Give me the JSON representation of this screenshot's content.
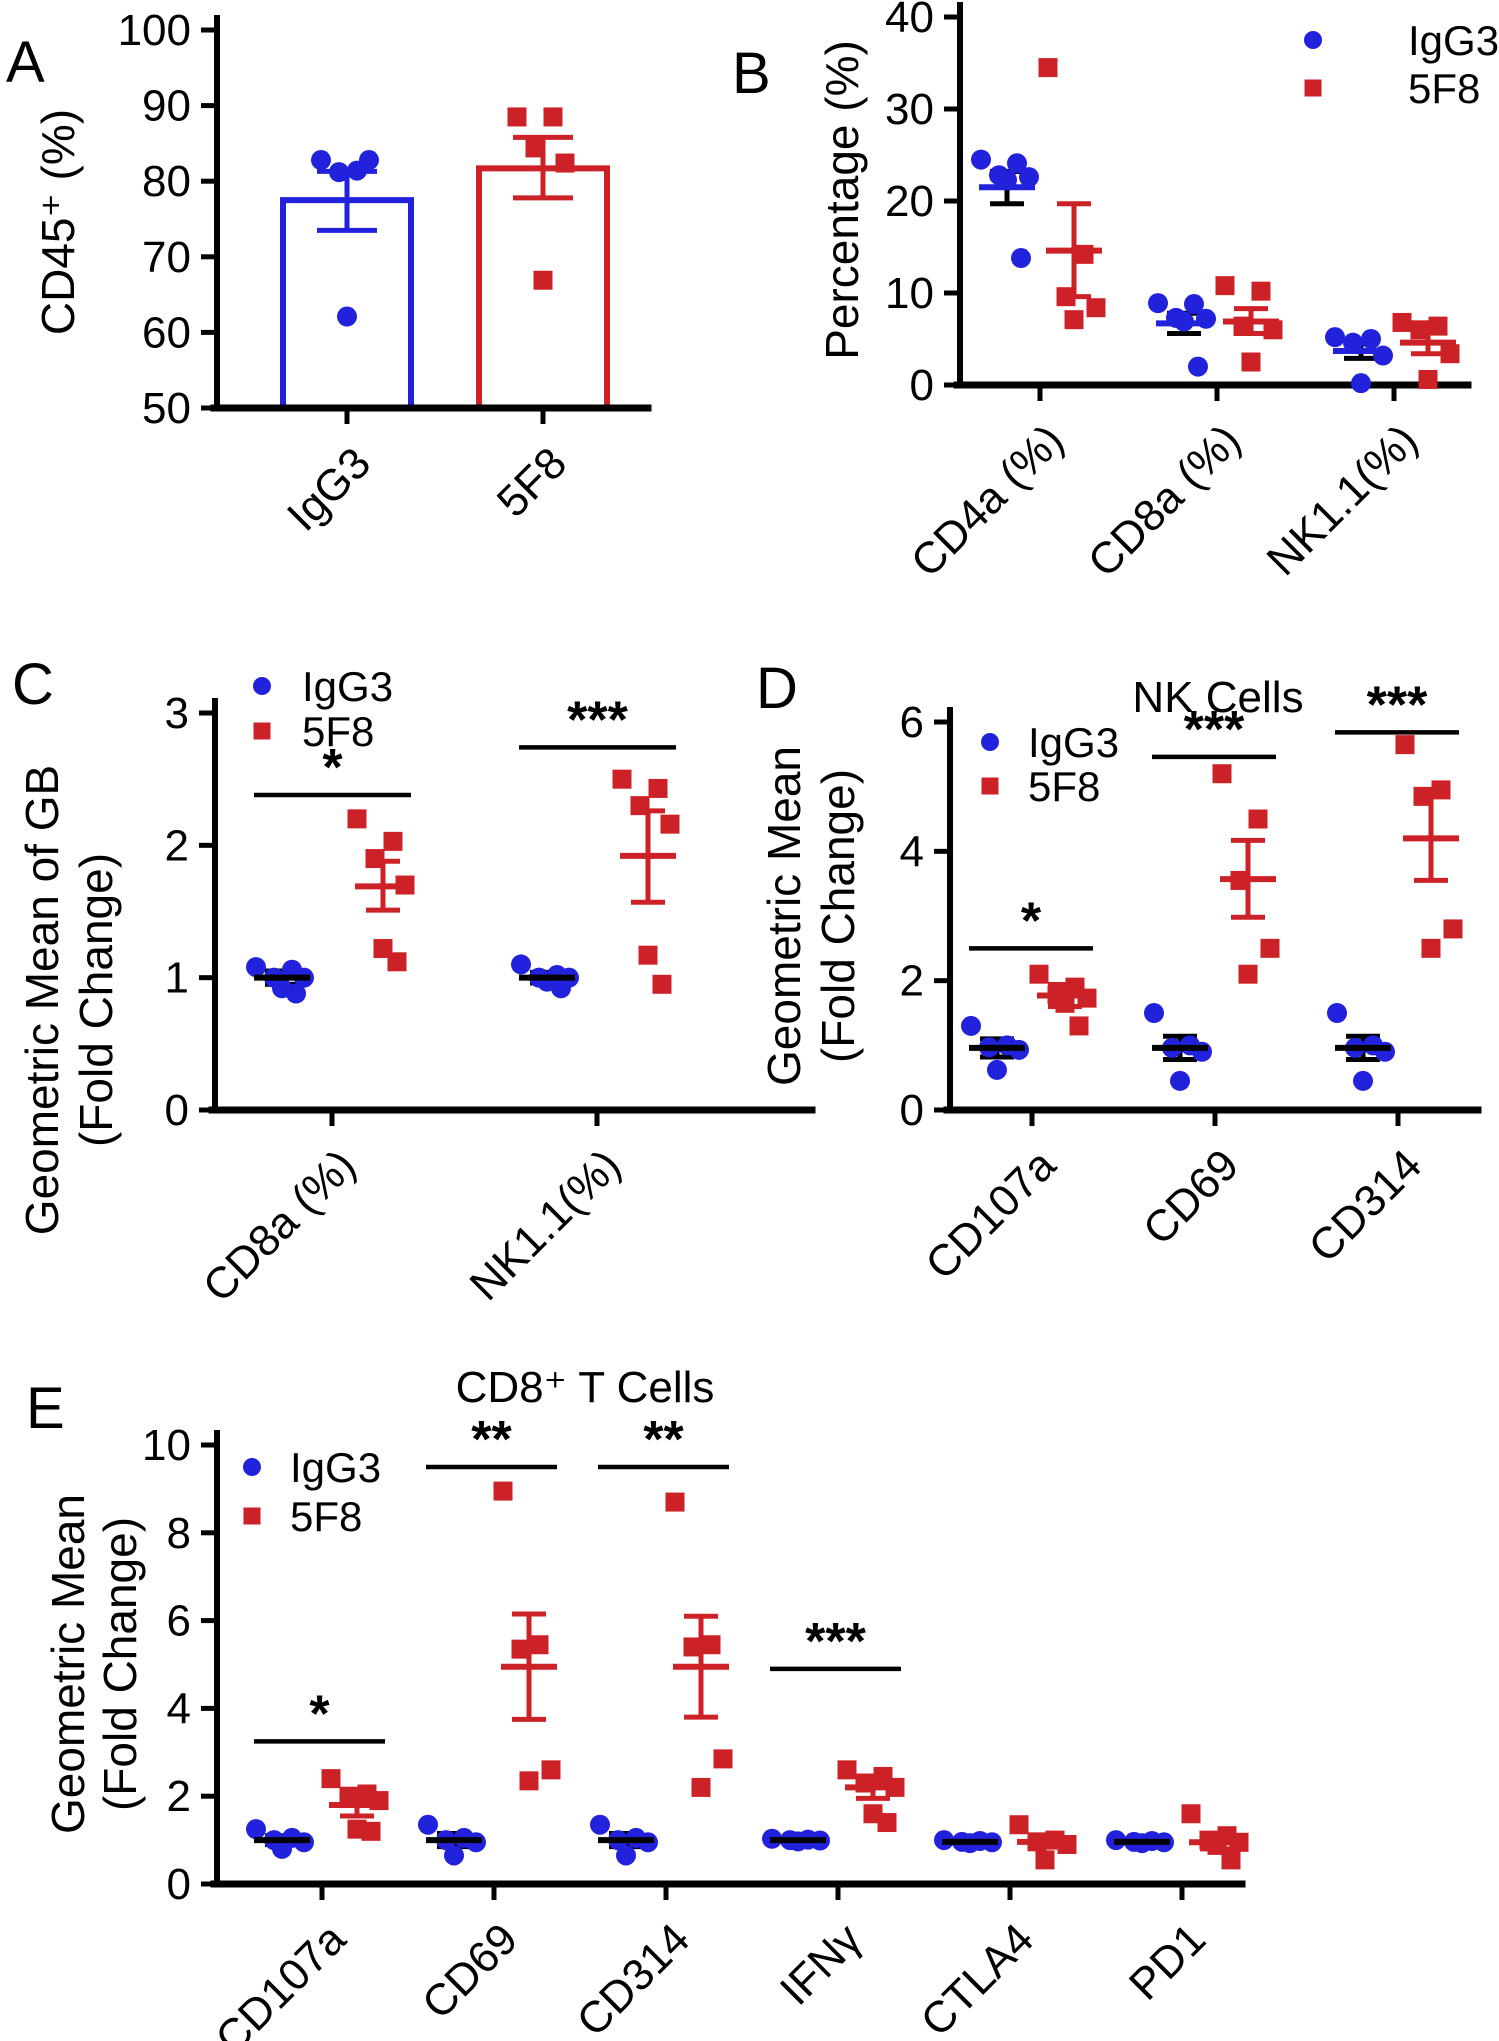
{
  "colors": {
    "igg3": "#2222DD",
    "f5f8": "#CC2127",
    "axis": "#000000",
    "background": "#FFFFFF"
  },
  "series_defs": [
    {
      "key": "igg3",
      "label": "IgG3",
      "marker": "circle"
    },
    {
      "key": "f5f8",
      "label": "5F8",
      "marker": "square"
    }
  ],
  "chart_data": [
    {
      "panel": "A",
      "panel_label": "A",
      "type": "bar",
      "ylabel": "CD45⁺ (%)",
      "ylim": [
        50,
        100
      ],
      "yticks": [
        50,
        60,
        70,
        80,
        90,
        100
      ],
      "categories": [
        "IgG3",
        "5F8"
      ],
      "series": [
        {
          "name": "IgG3",
          "color_key": "igg3",
          "bar_mean": 77.5,
          "err_lo": 73.5,
          "err_hi": 81.3,
          "points": [
            82.8,
            81.4,
            81.2,
            82.8,
            62.1
          ]
        },
        {
          "name": "5F8",
          "color_key": "f5f8",
          "bar_mean": 81.7,
          "err_lo": 77.8,
          "err_hi": 85.8,
          "points": [
            88.5,
            88.5,
            84.4,
            82.4,
            66.9
          ]
        }
      ]
    },
    {
      "panel": "B",
      "panel_label": "B",
      "type": "scatter",
      "show_legend": true,
      "ylabel": "Percentage (%)",
      "ylim": [
        0,
        40
      ],
      "yticks": [
        0,
        10,
        20,
        30,
        40
      ],
      "categories": [
        "CD4a (%)",
        "CD8a (%)",
        "NK1.1(%)"
      ],
      "groups": [
        {
          "category": "CD4a (%)",
          "igg3": {
            "points": [
              24.5,
              24.1,
              22.8,
              22.6,
              22.3,
              13.8
            ],
            "mean": 21.5,
            "err": [
              19.7,
              23.2
            ]
          },
          "f5f8": {
            "points": [
              34.5,
              14.2,
              9.6,
              8.4,
              7.1
            ],
            "mean": 14.6,
            "err": [
              9.6,
              19.7
            ]
          }
        },
        {
          "category": "CD8a (%)",
          "igg3": {
            "points": [
              8.9,
              8.8,
              7.3,
              7.2,
              6.9,
              2.0
            ],
            "mean": 6.7,
            "err": [
              5.6,
              7.8
            ]
          },
          "f5f8": {
            "points": [
              10.8,
              10.2,
              6.4,
              6.0,
              2.5
            ],
            "mean": 6.9,
            "err": [
              5.6,
              8.3
            ]
          }
        },
        {
          "category": "NK1.1(%)",
          "igg3": {
            "points": [
              5.2,
              5.0,
              4.6,
              3.2,
              0.2
            ],
            "mean": 3.7,
            "err": [
              2.9,
              4.5
            ]
          },
          "f5f8": {
            "points": [
              6.8,
              6.4,
              6.0,
              3.4,
              0.6
            ],
            "mean": 4.6,
            "err": [
              3.4,
              5.8
            ]
          }
        }
      ]
    },
    {
      "panel": "C",
      "panel_label": "C",
      "type": "scatter",
      "show_legend": true,
      "ylabel": "Geometric Mean of GB\n(Fold Change)",
      "ylim": [
        0,
        3
      ],
      "yticks": [
        0,
        1,
        2,
        3
      ],
      "categories": [
        "CD8a (%)",
        "NK1.1(%)"
      ],
      "groups": [
        {
          "category": "CD8a (%)",
          "igg3": {
            "points": [
              1.08,
              1.06,
              1.0,
              1.0,
              0.92,
              0.88
            ],
            "mean": 1.0,
            "err": [
              0.95,
              1.05
            ]
          },
          "f5f8": {
            "points": [
              2.2,
              2.03,
              1.9,
              1.7,
              1.22,
              1.12
            ],
            "mean": 1.69,
            "err": [
              1.51,
              1.88
            ]
          },
          "significance": {
            "label": "*",
            "line_value": 2.38
          }
        },
        {
          "category": "NK1.1(%)",
          "igg3": {
            "points": [
              1.1,
              1.02,
              1.0,
              1.0,
              0.97,
              0.92
            ],
            "mean": 1.0,
            "err": [
              0.96,
              1.04
            ]
          },
          "f5f8": {
            "points": [
              2.5,
              2.43,
              2.3,
              2.16,
              1.17,
              0.95
            ],
            "mean": 1.92,
            "err": [
              1.57,
              2.26
            ]
          },
          "significance": {
            "label": "***",
            "line_value": 2.74
          }
        }
      ]
    },
    {
      "panel": "D",
      "panel_label": "D",
      "type": "scatter",
      "show_legend": true,
      "title": "NK Cells",
      "ylabel": "Geometric Mean\n(Fold Change)",
      "ylim": [
        0,
        6
      ],
      "yticks": [
        0,
        2,
        4,
        6
      ],
      "categories": [
        "CD107a",
        "CD69",
        "CD314"
      ],
      "groups": [
        {
          "category": "CD107a",
          "igg3": {
            "points": [
              1.3,
              1.0,
              0.97,
              0.93,
              0.62
            ],
            "mean": 0.96,
            "err": [
              0.82,
              1.1
            ]
          },
          "f5f8": {
            "points": [
              2.1,
              1.9,
              1.78,
              1.73,
              1.65,
              1.3
            ],
            "mean": 1.77,
            "err": [
              1.6,
              1.94
            ]
          },
          "significance": {
            "label": "*",
            "line_value": 2.5
          }
        },
        {
          "category": "CD69",
          "igg3": {
            "points": [
              1.5,
              1.0,
              0.96,
              0.9,
              0.45
            ],
            "mean": 0.96,
            "err": [
              0.78,
              1.14
            ]
          },
          "f5f8": {
            "points": [
              5.2,
              4.5,
              3.55,
              2.5,
              2.1
            ],
            "mean": 3.57,
            "err": [
              2.98,
              4.17
            ]
          },
          "significance": {
            "label": "***",
            "line_value": 5.46
          }
        },
        {
          "category": "CD314",
          "igg3": {
            "points": [
              1.5,
              1.0,
              0.96,
              0.9,
              0.45
            ],
            "mean": 0.96,
            "err": [
              0.78,
              1.14
            ]
          },
          "f5f8": {
            "points": [
              5.65,
              4.95,
              4.85,
              2.8,
              2.5
            ],
            "mean": 4.2,
            "err": [
              3.55,
              4.85
            ]
          },
          "significance": {
            "label": "***",
            "line_value": 5.84
          }
        }
      ]
    },
    {
      "panel": "E",
      "panel_label": "E",
      "type": "scatter",
      "show_legend": true,
      "title": "CD8⁺ T Cells",
      "ylabel": "Geometric Mean\n(Fold Change)",
      "ylim": [
        0,
        10
      ],
      "yticks": [
        0,
        2,
        4,
        6,
        8,
        10
      ],
      "categories": [
        "CD107a",
        "CD69",
        "CD314",
        "IFNγ",
        "CTLA4",
        "PD1"
      ],
      "groups": [
        {
          "category": "CD107a",
          "igg3": {
            "points": [
              1.25,
              1.05,
              1.0,
              0.95,
              0.8
            ],
            "mean": 1.0,
            "err": [
              0.9,
              1.1
            ]
          },
          "f5f8": {
            "points": [
              2.4,
              2.05,
              2.0,
              1.9,
              1.25,
              1.2
            ],
            "mean": 1.8,
            "err": [
              1.55,
              2.0
            ]
          },
          "significance": {
            "label": "*",
            "line_value": 3.25
          }
        },
        {
          "category": "CD69",
          "igg3": {
            "points": [
              1.35,
              1.05,
              1.0,
              0.95,
              0.65
            ],
            "mean": 1.0,
            "err": [
              0.85,
              1.15
            ]
          },
          "f5f8": {
            "points": [
              8.95,
              5.45,
              5.35,
              2.6,
              2.35
            ],
            "mean": 4.95,
            "err": [
              3.75,
              6.15
            ]
          },
          "significance": {
            "label": "**",
            "line_value": 9.5
          }
        },
        {
          "category": "CD314",
          "igg3": {
            "points": [
              1.35,
              1.05,
              1.0,
              0.95,
              0.65
            ],
            "mean": 1.0,
            "err": [
              0.85,
              1.15
            ]
          },
          "f5f8": {
            "points": [
              8.7,
              5.45,
              5.4,
              2.85,
              2.2
            ],
            "mean": 4.95,
            "err": [
              3.8,
              6.1
            ]
          },
          "significance": {
            "label": "**",
            "line_value": 9.5
          }
        },
        {
          "category": "IFNγ",
          "igg3": {
            "points": [
              1.03,
              1.01,
              1.0,
              0.99,
              0.97
            ],
            "mean": 1.0,
            "err": null
          },
          "f5f8": {
            "points": [
              2.6,
              2.45,
              2.3,
              2.2,
              1.6,
              1.4
            ],
            "mean": 2.2,
            "err": [
              1.95,
              2.45
            ]
          },
          "significance": {
            "label": "***",
            "line_value": 4.9
          }
        },
        {
          "category": "CTLA4",
          "igg3": {
            "points": [
              1.0,
              0.98,
              0.96,
              0.95,
              0.93
            ],
            "mean": 0.96,
            "err": null
          },
          "f5f8": {
            "points": [
              1.35,
              1.0,
              0.96,
              0.9,
              0.55
            ],
            "mean": 0.96,
            "err": [
              0.85,
              1.07
            ]
          }
        },
        {
          "category": "PD1",
          "igg3": {
            "points": [
              1.0,
              0.98,
              0.96,
              0.95,
              0.93
            ],
            "mean": 0.96,
            "err": null
          },
          "f5f8": {
            "points": [
              1.6,
              1.1,
              1.0,
              0.95,
              0.88,
              0.55
            ],
            "mean": 0.95,
            "err": [
              0.8,
              1.1
            ]
          }
        }
      ]
    }
  ]
}
